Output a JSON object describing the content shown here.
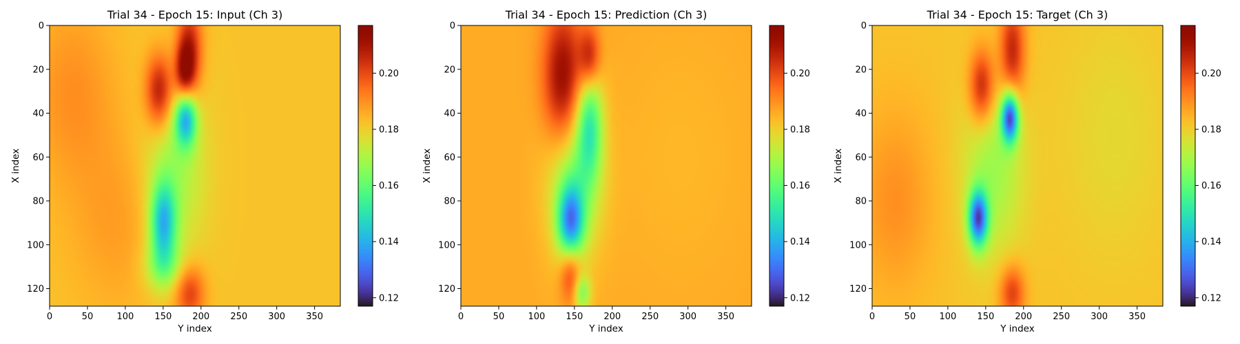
{
  "colormap": "turbo",
  "chart_data": [
    {
      "type": "heatmap",
      "title": "Trial 34 - Epoch 15: Input (Ch 3)",
      "xlabel": "Y index",
      "ylabel": "X index",
      "xlim": [
        0,
        384
      ],
      "ylim": [
        128,
        0
      ],
      "xticks": [
        0,
        50,
        100,
        150,
        200,
        250,
        300,
        350
      ],
      "yticks": [
        0,
        20,
        40,
        60,
        80,
        100,
        120
      ],
      "colorbar": {
        "min": 0.117,
        "max": 0.217,
        "ticks": [
          0.12,
          0.14,
          0.16,
          0.18,
          0.2
        ],
        "tick_labels": [
          "0.12",
          "0.14",
          "0.16",
          "0.18",
          "0.20"
        ]
      },
      "background_value": 0.182,
      "features": [
        {
          "x": 185,
          "y": 12,
          "sx": 12,
          "sy": 16,
          "v": 0.207
        },
        {
          "x": 145,
          "y": 30,
          "sx": 13,
          "sy": 12,
          "v": 0.21
        },
        {
          "x": 178,
          "y": 22,
          "sx": 9,
          "sy": 10,
          "v": 0.205
        },
        {
          "x": 180,
          "y": 42,
          "sx": 10,
          "sy": 9,
          "v": 0.142
        },
        {
          "x": 150,
          "y": 90,
          "sx": 12,
          "sy": 13,
          "v": 0.145
        },
        {
          "x": 165,
          "y": 65,
          "sx": 28,
          "sy": 28,
          "v": 0.168
        },
        {
          "x": 150,
          "y": 110,
          "sx": 18,
          "sy": 8,
          "v": 0.168
        },
        {
          "x": 185,
          "y": 122,
          "sx": 14,
          "sy": 9,
          "v": 0.202
        },
        {
          "x": 30,
          "y": 30,
          "sx": 40,
          "sy": 30,
          "v": 0.19
        },
        {
          "x": 90,
          "y": 90,
          "sx": 45,
          "sy": 30,
          "v": 0.188
        }
      ]
    },
    {
      "type": "heatmap",
      "title": "Trial 34 - Epoch 15: Prediction (Ch 3)",
      "xlabel": "Y index",
      "ylabel": "X index",
      "xlim": [
        0,
        384
      ],
      "ylim": [
        128,
        0
      ],
      "xticks": [
        0,
        50,
        100,
        150,
        200,
        250,
        300,
        350
      ],
      "yticks": [
        0,
        20,
        40,
        60,
        80,
        100,
        120
      ],
      "colorbar": {
        "min": 0.117,
        "max": 0.217,
        "ticks": [
          0.12,
          0.14,
          0.16,
          0.18,
          0.2
        ],
        "tick_labels": [
          "0.12",
          "0.14",
          "0.16",
          "0.18",
          "0.20"
        ]
      },
      "background_value": 0.186,
      "features": [
        {
          "x": 135,
          "y": 25,
          "sx": 18,
          "sy": 22,
          "v": 0.215
        },
        {
          "x": 170,
          "y": 15,
          "sx": 10,
          "sy": 10,
          "v": 0.208
        },
        {
          "x": 170,
          "y": 45,
          "sx": 12,
          "sy": 18,
          "v": 0.158
        },
        {
          "x": 145,
          "y": 90,
          "sx": 12,
          "sy": 12,
          "v": 0.143
        },
        {
          "x": 150,
          "y": 70,
          "sx": 25,
          "sy": 25,
          "v": 0.165
        },
        {
          "x": 145,
          "y": 112,
          "sx": 10,
          "sy": 10,
          "v": 0.207
        },
        {
          "x": 160,
          "y": 122,
          "sx": 8,
          "sy": 6,
          "v": 0.165
        },
        {
          "x": 290,
          "y": 60,
          "sx": 60,
          "sy": 40,
          "v": 0.184
        }
      ]
    },
    {
      "type": "heatmap",
      "title": "Trial 34 - Epoch 15: Target (Ch 3)",
      "xlabel": "Y index",
      "ylabel": "X index",
      "xlim": [
        0,
        384
      ],
      "ylim": [
        128,
        0
      ],
      "xticks": [
        0,
        50,
        100,
        150,
        200,
        250,
        300,
        350
      ],
      "yticks": [
        0,
        20,
        40,
        60,
        80,
        100,
        120
      ],
      "colorbar": {
        "min": 0.117,
        "max": 0.217,
        "ticks": [
          0.12,
          0.14,
          0.16,
          0.18,
          0.2
        ],
        "tick_labels": [
          "0.12",
          "0.14",
          "0.16",
          "0.18",
          "0.20"
        ]
      },
      "background_value": 0.182,
      "features": [
        {
          "x": 185,
          "y": 12,
          "sx": 12,
          "sy": 16,
          "v": 0.207
        },
        {
          "x": 145,
          "y": 28,
          "sx": 12,
          "sy": 12,
          "v": 0.208
        },
        {
          "x": 182,
          "y": 42,
          "sx": 8,
          "sy": 8,
          "v": 0.128
        },
        {
          "x": 140,
          "y": 88,
          "sx": 9,
          "sy": 9,
          "v": 0.13
        },
        {
          "x": 160,
          "y": 65,
          "sx": 28,
          "sy": 28,
          "v": 0.168
        },
        {
          "x": 185,
          "y": 122,
          "sx": 12,
          "sy": 9,
          "v": 0.202
        },
        {
          "x": 30,
          "y": 80,
          "sx": 35,
          "sy": 30,
          "v": 0.19
        },
        {
          "x": 320,
          "y": 50,
          "sx": 50,
          "sy": 40,
          "v": 0.178
        }
      ]
    }
  ]
}
